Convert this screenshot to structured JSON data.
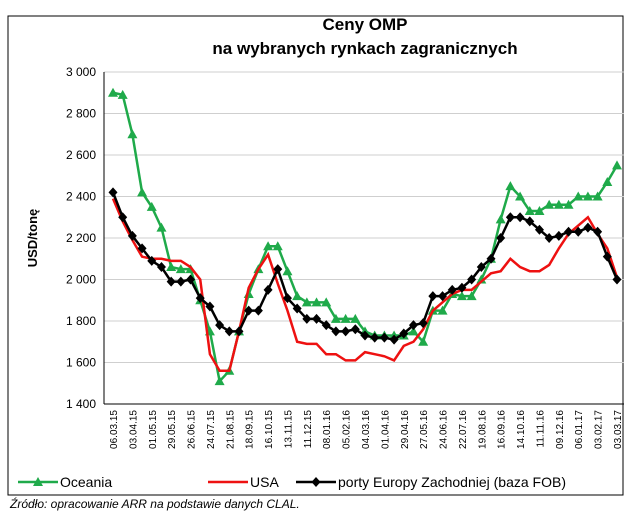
{
  "chart_data": {
    "type": "line",
    "title": "Ceny OMP",
    "subtitle": "na wybranych rynkach zagranicznych",
    "y_label": "USD/tonę",
    "source": "Źródło: opracowanie ARR na podstawie danych  CLAL.",
    "categories": [
      "06.03.15",
      null,
      "03.04.15",
      null,
      "01.05.15",
      null,
      "29.05.15",
      null,
      "26.06.15",
      null,
      "24.07.15",
      null,
      "21.08.15",
      null,
      "18.09.15",
      null,
      "16.10.15",
      null,
      "13.11.15",
      null,
      "11.12.15",
      null,
      "08.01.16",
      null,
      "05.02.16",
      null,
      "04.03.16",
      null,
      "01.04.16",
      null,
      "29.04.16",
      null,
      "27.05.16",
      null,
      "24.06.16",
      null,
      "22.07.16",
      null,
      "19.08.16",
      null,
      "16.09.16",
      null,
      "14.10.16",
      null,
      "11.11.16",
      null,
      "09.12.16",
      null,
      "06.01.17",
      null,
      "03.02.17",
      null,
      "03.03.17"
    ],
    "series": [
      {
        "name": "Oceania",
        "color": "#1faa4a",
        "marker": "triangle",
        "values": [
          2900,
          2890,
          2700,
          2420,
          2350,
          2250,
          2060,
          2050,
          2050,
          1900,
          1750,
          1510,
          1560,
          1750,
          1930,
          2050,
          2160,
          2160,
          2040,
          1920,
          1890,
          1890,
          1890,
          1810,
          1810,
          1810,
          1750,
          1730,
          1730,
          1730,
          1730,
          1750,
          1700,
          1850,
          1850,
          1930,
          1920,
          1920,
          2000,
          2100,
          2290,
          2450,
          2400,
          2330,
          2330,
          2360,
          2360,
          2360,
          2400,
          2400,
          2400,
          2470,
          2550
        ]
      },
      {
        "name": "USA",
        "color": "#ee1111",
        "marker": "none",
        "values": [
          2390,
          2280,
          2190,
          2110,
          2100,
          2100,
          2090,
          2090,
          2060,
          2000,
          1640,
          1560,
          1560,
          1750,
          1960,
          2050,
          2120,
          1980,
          1850,
          1700,
          1690,
          1690,
          1640,
          1640,
          1610,
          1610,
          1650,
          1640,
          1630,
          1610,
          1680,
          1700,
          1760,
          1850,
          1890,
          1930,
          1950,
          1950,
          1990,
          2030,
          2040,
          2100,
          2060,
          2040,
          2040,
          2070,
          2150,
          2220,
          2260,
          2300,
          2220,
          2150,
          2010
        ]
      },
      {
        "name": "porty Europy Zachodniej (baza FOB)",
        "color": "#000000",
        "marker": "diamond",
        "values": [
          2420,
          2300,
          2210,
          2150,
          2090,
          2060,
          1990,
          1990,
          2000,
          1910,
          1870,
          1780,
          1750,
          1750,
          1850,
          1850,
          1950,
          2050,
          1910,
          1860,
          1810,
          1810,
          1780,
          1750,
          1750,
          1760,
          1730,
          1720,
          1720,
          1710,
          1740,
          1780,
          1790,
          1920,
          1920,
          1950,
          1960,
          2000,
          2060,
          2100,
          2200,
          2300,
          2300,
          2280,
          2240,
          2200,
          2210,
          2230,
          2230,
          2250,
          2230,
          2110,
          2000
        ]
      }
    ],
    "ylim": [
      1400,
      3000
    ],
    "yticks": [
      {
        "value": 1400,
        "label": "1 400"
      },
      {
        "value": 1600,
        "label": "1 600"
      },
      {
        "value": 1800,
        "label": "1 800"
      },
      {
        "value": 2000,
        "label": "2 000"
      },
      {
        "value": 2200,
        "label": "2 200"
      },
      {
        "value": 2400,
        "label": "2 400"
      },
      {
        "value": 2600,
        "label": "2 600"
      },
      {
        "value": 2800,
        "label": "2 800"
      },
      {
        "value": 3000,
        "label": "3 000"
      }
    ],
    "grid": true,
    "legend": "bottom"
  }
}
